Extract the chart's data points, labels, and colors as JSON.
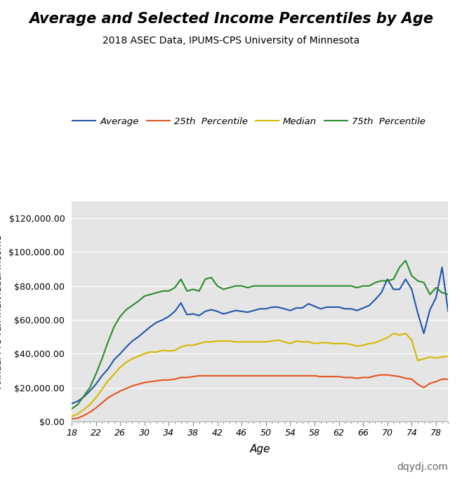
{
  "title": "Average and Selected Income Percentiles by Age",
  "subtitle": "2018 ASEC Data, IPUMS-CPS University of Minnesota",
  "xlabel": "Age",
  "watermark": "dqydj.com",
  "background_color": "#e5e5e5",
  "ylim": [
    0,
    130000
  ],
  "ytick_step": 20000,
  "ages": [
    18,
    19,
    20,
    21,
    22,
    23,
    24,
    25,
    26,
    27,
    28,
    29,
    30,
    31,
    32,
    33,
    34,
    35,
    36,
    37,
    38,
    39,
    40,
    41,
    42,
    43,
    44,
    45,
    46,
    47,
    48,
    49,
    50,
    51,
    52,
    53,
    54,
    55,
    56,
    57,
    58,
    59,
    60,
    61,
    62,
    63,
    64,
    65,
    66,
    67,
    68,
    69,
    70,
    71,
    72,
    73,
    74,
    75,
    76,
    77,
    78,
    79,
    80
  ],
  "average": [
    10500,
    12000,
    14500,
    18000,
    22000,
    27000,
    31000,
    36500,
    40000,
    44000,
    47500,
    50000,
    53000,
    56000,
    58500,
    60000,
    62000,
    65000,
    70000,
    63000,
    63500,
    62500,
    65000,
    66000,
    65000,
    63500,
    64500,
    65500,
    65000,
    64500,
    65500,
    66500,
    66500,
    67500,
    67500,
    66500,
    65500,
    67000,
    67000,
    69500,
    68000,
    66500,
    67500,
    67500,
    67500,
    66500,
    66500,
    65500,
    67000,
    68500,
    72000,
    76000,
    84000,
    78000,
    78000,
    84000,
    78000,
    64000,
    52000,
    66000,
    73000,
    91000,
    65000
  ],
  "p25": [
    1500,
    2000,
    3500,
    5500,
    8000,
    11000,
    14000,
    16000,
    18000,
    19500,
    21000,
    22000,
    23000,
    23500,
    24000,
    24500,
    24500,
    25000,
    26000,
    26000,
    26500,
    27000,
    27000,
    27000,
    27000,
    27000,
    27000,
    27000,
    27000,
    27000,
    27000,
    27000,
    27000,
    27000,
    27000,
    27000,
    27000,
    27000,
    27000,
    27000,
    27000,
    26500,
    26500,
    26500,
    26500,
    26000,
    26000,
    25500,
    26000,
    26000,
    27000,
    27500,
    27500,
    27000,
    26500,
    25500,
    25000,
    22000,
    20000,
    22500,
    23500,
    25000,
    25000
  ],
  "median": [
    3000,
    4500,
    7000,
    10000,
    14000,
    19000,
    24000,
    28000,
    32000,
    35000,
    37000,
    38500,
    40000,
    41000,
    41000,
    42000,
    41500,
    42000,
    44000,
    45000,
    45000,
    46000,
    47000,
    47000,
    47500,
    47500,
    47500,
    47000,
    47000,
    47000,
    47000,
    47000,
    47000,
    47500,
    48000,
    47000,
    46000,
    47500,
    47000,
    47000,
    46000,
    46500,
    46500,
    46000,
    46000,
    46000,
    45500,
    44500,
    45000,
    46000,
    46500,
    48000,
    49500,
    52000,
    51000,
    52000,
    48000,
    36000,
    37000,
    38000,
    37500,
    38000,
    38500
  ],
  "p75": [
    7500,
    10000,
    15000,
    20000,
    28000,
    37000,
    47000,
    56000,
    62000,
    66000,
    68500,
    71000,
    74000,
    75000,
    76000,
    77000,
    77000,
    79000,
    84000,
    77000,
    78000,
    77000,
    84000,
    85000,
    80000,
    78000,
    79000,
    80000,
    80000,
    79000,
    80000,
    80000,
    80000,
    80000,
    80000,
    80000,
    80000,
    80000,
    80000,
    80000,
    80000,
    80000,
    80000,
    80000,
    80000,
    80000,
    80000,
    79000,
    80000,
    80000,
    82000,
    83000,
    83000,
    84000,
    91000,
    95000,
    86000,
    83000,
    82000,
    75000,
    79000,
    76000,
    75000
  ],
  "colors": {
    "average": "#2255aa",
    "p25": "#e05520",
    "median": "#d4b800",
    "p75": "#2d8a2d"
  },
  "legend_labels": [
    "Average",
    "25th  Percentile",
    "Median",
    "75th  Percentile"
  ],
  "xticks": [
    18,
    22,
    26,
    30,
    34,
    38,
    42,
    46,
    50,
    54,
    58,
    62,
    66,
    70,
    74,
    78
  ]
}
